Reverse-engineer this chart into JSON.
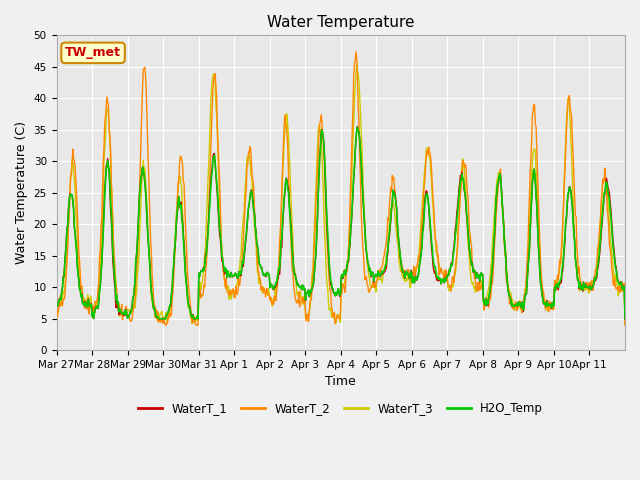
{
  "title": "Water Temperature",
  "ylabel": "Water Temperature (C)",
  "xlabel": "Time",
  "annotation_text": "TW_met",
  "annotation_color": "#cc0000",
  "annotation_bg": "#ffffcc",
  "annotation_border": "#cc8800",
  "ylim": [
    0,
    50
  ],
  "fig_bg": "#f0f0f0",
  "plot_bg": "#e8e8e8",
  "line_colors": {
    "WaterT_1": "#cc0000",
    "WaterT_2": "#ff8800",
    "WaterT_3": "#cccc00",
    "H2O_Temp": "#00cc00"
  },
  "line_widths": {
    "WaterT_1": 1.0,
    "WaterT_2": 1.0,
    "WaterT_3": 1.0,
    "H2O_Temp": 1.2
  },
  "tick_labels": [
    "Mar 27",
    "Mar 28",
    "Mar 29",
    "Mar 30",
    "Mar 31",
    "Apr 1",
    "Apr 2",
    "Apr 3",
    "Apr 4",
    "Apr 5",
    "Apr 6",
    "Apr 7",
    "Apr 8",
    "Apr 9",
    "Apr 10",
    "Apr 11"
  ],
  "grid_color": "#ffffff",
  "title_fontsize": 11,
  "label_fontsize": 9,
  "tick_fontsize": 7.5
}
